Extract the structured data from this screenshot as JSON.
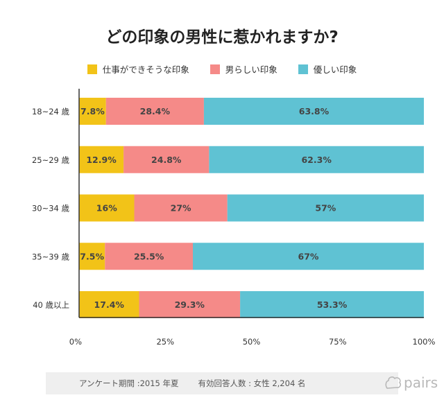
{
  "title": "どの印象の男性に惹かれますか?",
  "legend": [
    {
      "label": "仕事ができそうな印象",
      "color": "#f2c318"
    },
    {
      "label": "男らしい印象",
      "color": "#f58a88"
    },
    {
      "label": "優しい印象",
      "color": "#5fc2d3"
    }
  ],
  "chart_data": {
    "type": "bar",
    "orientation": "horizontal",
    "stacked": true,
    "categories": [
      "18~24 歳",
      "25~29 歳",
      "30~34 歳",
      "35~39 歳",
      "40 歳以上"
    ],
    "series": [
      {
        "name": "仕事ができそうな印象",
        "values": [
          7.8,
          12.9,
          16,
          7.5,
          17.4
        ],
        "labels": [
          "7.8%",
          "12.9%",
          "16%",
          "7.5%",
          "17.4%"
        ],
        "color": "#f2c318"
      },
      {
        "name": "男らしい印象",
        "values": [
          28.4,
          24.8,
          27,
          25.5,
          29.3
        ],
        "labels": [
          "28.4%",
          "24.8%",
          "27%",
          "25.5%",
          "29.3%"
        ],
        "color": "#f58a88"
      },
      {
        "name": "優しい印象",
        "values": [
          63.8,
          62.3,
          57,
          67,
          53.3
        ],
        "labels": [
          "63.8%",
          "62.3%",
          "57%",
          "67%",
          "53.3%"
        ],
        "color": "#5fc2d3"
      }
    ],
    "x_ticks": [
      "0%",
      "25%",
      "50%",
      "75%",
      "100%"
    ],
    "xlim": [
      0,
      100
    ],
    "grid": false,
    "legend_position": "top"
  },
  "footer": {
    "survey": "アンケート期間 :2015 年夏",
    "sample": "有効回答人数 : 女性 2,204 名",
    "logo": "pairs"
  }
}
